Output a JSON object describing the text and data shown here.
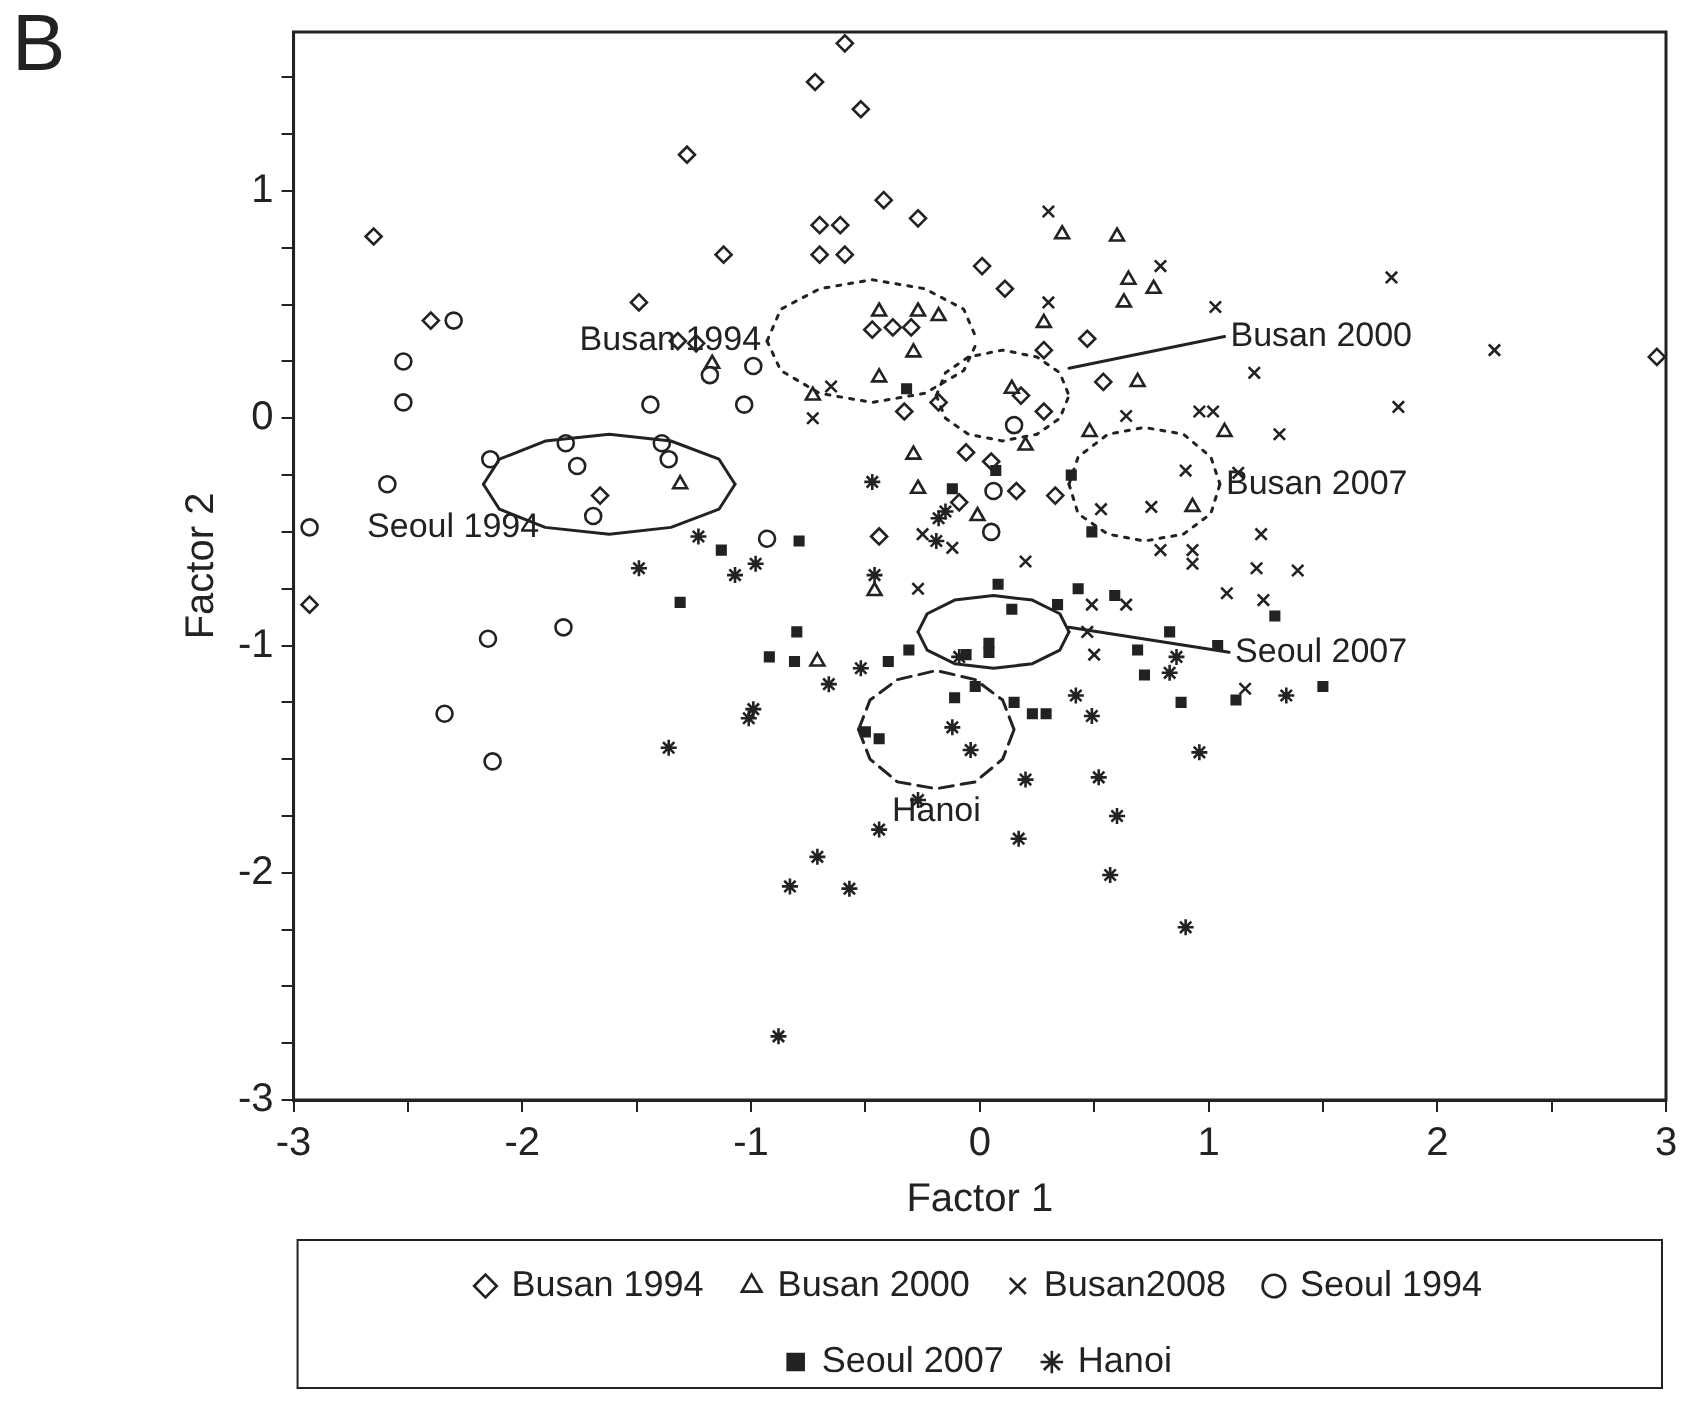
{
  "chart_data": {
    "type": "scatter",
    "xlabel": "Factor 1",
    "ylabel": "Factor 2",
    "legend": "bottom",
    "grid": false,
    "xlim": [
      -3,
      3
    ],
    "xticks": [
      -3,
      {
        "value": -2.5,
        "label": null
      },
      -2,
      {
        "value": -1.5,
        "label": null
      },
      -1,
      {
        "value": -0.5,
        "label": null
      },
      0,
      {
        "value": 0.5,
        "label": null
      },
      1,
      {
        "value": 1.5,
        "label": null
      },
      2,
      {
        "value": 2.5,
        "label": null
      },
      3
    ],
    "ylim": [
      -3,
      1.7
    ],
    "yticks": [
      -3,
      {
        "value": -2.75,
        "label": null
      },
      {
        "value": -2.5,
        "label": null
      },
      {
        "value": -2.25,
        "label": null
      },
      -2,
      {
        "value": -1.75,
        "label": null
      },
      {
        "value": -1.5,
        "label": null
      },
      {
        "value": -1.25,
        "label": null
      },
      -1,
      {
        "value": -0.75,
        "label": null
      },
      {
        "value": -0.5,
        "label": null
      },
      {
        "value": -0.25,
        "label": null
      },
      0,
      {
        "value": 0.25,
        "label": null
      },
      {
        "value": 0.5,
        "label": null
      },
      {
        "value": 0.75,
        "label": null
      },
      1,
      {
        "value": 1.25,
        "label": null
      },
      {
        "value": 1.5,
        "label": null
      }
    ],
    "annotations": [
      "B",
      {
        "text": "Busan 1994",
        "x": -0.93,
        "y": 0.34
      },
      {
        "text": "Busan 2000",
        "x": 1.07,
        "y": 0.36
      },
      {
        "text": "Busan 2007",
        "x": 1.05,
        "y": -0.29
      },
      {
        "text": "Seoul 1994",
        "x": -1.9,
        "y": -0.48
      },
      {
        "text": "Seoul 2007",
        "x": 1.09,
        "y": -1.03
      },
      {
        "text": "Hanoi",
        "x": -0.19,
        "y": -1.63
      }
    ],
    "series": [
      {
        "name": "Busan 1994",
        "color": "#222222",
        "marker": "diamond",
        "x": [
          -1.28,
          -2.65,
          -2.4,
          -1.12,
          -1.49,
          -1.32,
          -1.24,
          -1.66,
          -2.93,
          -0.59,
          -0.72,
          -0.52,
          -0.42,
          -0.27,
          -0.7,
          -0.61,
          -0.7,
          -0.59,
          0.01,
          0.11,
          -0.47,
          -0.38,
          -0.3,
          0.47,
          0.28,
          0.54,
          -0.33,
          -0.18,
          0.18,
          0.28,
          -0.06,
          0.05,
          0.16,
          0.33,
          -0.09,
          -0.44,
          2.96
        ],
        "values": [
          1.16,
          0.8,
          0.43,
          0.72,
          0.51,
          0.34,
          0.33,
          -0.34,
          -0.82,
          1.65,
          1.48,
          1.36,
          0.96,
          0.88,
          0.85,
          0.85,
          0.72,
          0.72,
          0.67,
          0.57,
          0.39,
          0.4,
          0.4,
          0.35,
          0.3,
          0.16,
          0.03,
          0.07,
          0.1,
          0.03,
          -0.15,
          -0.19,
          -0.32,
          -0.34,
          -0.37,
          -0.52,
          0.27
        ]
      },
      {
        "name": "Busan 2000",
        "color": "#222222",
        "marker": "triangle",
        "x": [
          -1.17,
          -1.31,
          0.36,
          0.6,
          0.65,
          0.63,
          0.76,
          0.28,
          -0.44,
          -0.27,
          -0.18,
          -0.29,
          0.69,
          -0.44,
          -0.73,
          0.14,
          0.2,
          0.48,
          -0.29,
          0.93,
          -0.27,
          -0.01,
          1.07,
          -0.46,
          -0.71
        ],
        "values": [
          0.24,
          -0.29,
          0.81,
          0.8,
          0.61,
          0.51,
          0.57,
          0.42,
          0.47,
          0.47,
          0.45,
          0.29,
          0.16,
          0.18,
          0.1,
          0.13,
          -0.12,
          -0.06,
          -0.16,
          -0.39,
          -0.31,
          -0.43,
          -0.06,
          -0.76,
          -1.07
        ]
      },
      {
        "name": "Busan2008",
        "color": "#222222",
        "marker": "cross",
        "x": [
          0.3,
          0.79,
          0.3,
          -0.65,
          -0.73,
          0.64,
          0.96,
          1.02,
          0.9,
          0.53,
          0.75,
          0.79,
          0.93,
          0.93,
          0.2,
          -0.25,
          -0.12,
          1.8,
          1.03,
          2.25,
          1.2,
          1.83,
          1.31,
          1.13,
          1.23,
          1.21,
          1.39,
          1.08,
          1.24,
          1.16,
          -0.27,
          0.49,
          0.64,
          0.47,
          0.5
        ],
        "values": [
          0.91,
          0.67,
          0.51,
          0.14,
          0.0,
          0.01,
          0.03,
          0.03,
          -0.23,
          -0.4,
          -0.39,
          -0.58,
          -0.58,
          -0.64,
          -0.63,
          -0.51,
          -0.57,
          0.62,
          0.49,
          0.3,
          0.2,
          0.05,
          -0.07,
          -0.24,
          -0.51,
          -0.66,
          -0.67,
          -0.77,
          -0.8,
          -1.19,
          -0.75,
          -0.82,
          -0.82,
          -0.94,
          -1.04
        ]
      },
      {
        "name": "Seoul 1994",
        "color": "#222222",
        "marker": "circle",
        "x": [
          -2.3,
          -2.52,
          -2.52,
          -2.14,
          -2.59,
          -2.93,
          -1.18,
          -0.99,
          -1.44,
          -1.03,
          -1.81,
          -1.76,
          -1.39,
          -1.36,
          -1.69,
          -2.15,
          -1.82,
          -2.34,
          -2.13,
          0.15,
          0.06,
          0.05,
          -0.93
        ],
        "values": [
          0.43,
          0.25,
          0.07,
          -0.18,
          -0.29,
          -0.48,
          0.19,
          0.23,
          0.06,
          0.06,
          -0.11,
          -0.21,
          -0.11,
          -0.18,
          -0.43,
          -0.97,
          -0.92,
          -1.3,
          -1.51,
          -0.03,
          -0.32,
          -0.5,
          -0.53
        ]
      },
      {
        "name": "Seoul 2007",
        "color": "#222222",
        "marker": "square",
        "x": [
          -1.13,
          -1.31,
          -0.32,
          0.07,
          0.4,
          0.49,
          -0.12,
          -0.79,
          1.29,
          1.04,
          1.12,
          1.5,
          0.08,
          0.14,
          0.34,
          0.43,
          0.59,
          -0.8,
          -0.92,
          -0.81,
          -0.4,
          -0.31,
          0.04,
          -0.06,
          0.04,
          0.83,
          0.69,
          0.72,
          0.88,
          -0.11,
          -0.02,
          0.15,
          0.23,
          0.29,
          -0.5,
          -0.44
        ],
        "values": [
          -0.58,
          -0.81,
          0.13,
          -0.23,
          -0.25,
          -0.5,
          -0.31,
          -0.54,
          -0.87,
          -1.0,
          -1.24,
          -1.18,
          -0.73,
          -0.84,
          -0.82,
          -0.75,
          -0.78,
          -0.94,
          -1.05,
          -1.07,
          -1.07,
          -1.02,
          -0.99,
          -1.04,
          -1.03,
          -0.94,
          -1.02,
          -1.13,
          -1.25,
          -1.23,
          -1.18,
          -1.25,
          -1.3,
          -1.3,
          -1.38,
          -1.41
        ]
      },
      {
        "name": "Hanoi",
        "color": "#222222",
        "x": [
          -1.23,
          -1.49,
          -1.07,
          -0.98,
          -1.36,
          -1.01,
          -0.99,
          -0.47,
          -0.15,
          -0.18,
          -0.19,
          1.34,
          0.96,
          -0.46,
          -0.52,
          -0.66,
          -0.09,
          0.86,
          0.83,
          0.42,
          0.49,
          -0.12,
          -0.04,
          0.2,
          0.52,
          -0.27,
          0.6,
          0.17,
          -0.44,
          -0.71,
          0.57,
          -0.83,
          -0.57,
          0.9,
          -0.88
        ],
        "values": [
          -0.52,
          -0.66,
          -0.69,
          -0.64,
          -1.45,
          -1.32,
          -1.28,
          -0.28,
          -0.41,
          -0.44,
          -0.54,
          -1.22,
          -1.47,
          -0.69,
          -1.1,
          -1.17,
          -1.05,
          -1.05,
          -1.12,
          -1.22,
          -1.31,
          -1.36,
          -1.46,
          -1.59,
          -1.58,
          -1.68,
          -1.75,
          -1.85,
          -1.81,
          -1.93,
          -2.01,
          -2.06,
          -2.07,
          -2.24,
          -2.72
        ]
      },
      {
        "type": "line",
        "color": "#222222",
        "line_style": "solid",
        "x": [
          -2.17,
          -2.1,
          -1.9,
          -1.62,
          -1.35,
          -1.14,
          -1.07
        ],
        "values": [
          -0.29,
          -0.18,
          -0.1,
          -0.07,
          -0.1,
          -0.18,
          -0.29
        ]
      },
      {
        "type": "line",
        "color": "#222222",
        "line_style": "solid",
        "x": [
          -2.17,
          -2.1,
          -1.9,
          -1.62,
          -1.35,
          -1.14,
          -1.07
        ],
        "values": [
          -0.29,
          -0.4,
          -0.48,
          -0.51,
          -0.48,
          -0.4,
          -0.29
        ]
      },
      {
        "type": "line",
        "color": "#222222",
        "line_style": "dotted",
        "x": [
          -0.93,
          -0.87,
          -0.7,
          -0.47,
          -0.24,
          -0.07,
          -0.01
        ],
        "values": [
          0.34,
          0.48,
          0.57,
          0.61,
          0.57,
          0.48,
          0.34
        ]
      },
      {
        "type": "line",
        "color": "#222222",
        "line_style": "dotted",
        "x": [
          -0.93,
          -0.87,
          -0.7,
          -0.47,
          -0.24,
          -0.07,
          -0.01
        ],
        "values": [
          0.34,
          0.21,
          0.11,
          0.07,
          0.11,
          0.21,
          0.34
        ]
      },
      {
        "type": "line",
        "color": "#222222",
        "line_style": "dotted",
        "x": [
          -0.19,
          -0.15,
          -0.05,
          0.1,
          0.25,
          0.35,
          0.39
        ],
        "values": [
          0.1,
          0.2,
          0.27,
          0.3,
          0.27,
          0.2,
          0.1
        ]
      },
      {
        "type": "line",
        "color": "#222222",
        "line_style": "dotted",
        "x": [
          -0.19,
          -0.15,
          -0.05,
          0.1,
          0.25,
          0.35,
          0.39
        ],
        "values": [
          0.1,
          0.0,
          -0.07,
          -0.1,
          -0.07,
          0.0,
          0.1
        ]
      },
      {
        "type": "line",
        "color": "#222222",
        "line_style": "dotted",
        "x": [
          0.39,
          0.43,
          0.56,
          0.72,
          0.89,
          1.01,
          1.05
        ],
        "values": [
          -0.29,
          -0.17,
          -0.07,
          -0.04,
          -0.07,
          -0.17,
          -0.29
        ]
      },
      {
        "type": "line",
        "color": "#222222",
        "line_style": "dotted",
        "x": [
          0.39,
          0.43,
          0.56,
          0.72,
          0.89,
          1.01,
          1.05
        ],
        "values": [
          -0.29,
          -0.42,
          -0.51,
          -0.54,
          -0.51,
          -0.42,
          -0.29
        ]
      },
      {
        "type": "line",
        "color": "#222222",
        "line_style": "solid",
        "x": [
          -0.27,
          -0.23,
          -0.11,
          0.06,
          0.23,
          0.35,
          0.39
        ],
        "values": [
          -0.94,
          -0.86,
          -0.8,
          -0.78,
          -0.8,
          -0.86,
          -0.94
        ]
      },
      {
        "type": "line",
        "color": "#222222",
        "line_style": "solid",
        "x": [
          -0.27,
          -0.23,
          -0.11,
          0.06,
          0.23,
          0.35,
          0.39
        ],
        "values": [
          -0.94,
          -1.02,
          -1.08,
          -1.1,
          -1.08,
          -1.02,
          -0.94
        ]
      },
      {
        "type": "line",
        "color": "#222222",
        "line_style": "dashed",
        "x": [
          -0.53,
          -0.48,
          -0.36,
          -0.19,
          -0.02,
          0.1,
          0.15
        ],
        "values": [
          -1.37,
          -1.24,
          -1.15,
          -1.11,
          -1.15,
          -1.24,
          -1.37
        ]
      },
      {
        "type": "line",
        "color": "#222222",
        "line_style": "dashed",
        "x": [
          -0.53,
          -0.48,
          -0.36,
          -0.19,
          -0.02,
          0.1,
          0.15
        ],
        "values": [
          -1.37,
          -1.5,
          -1.6,
          -1.63,
          -1.6,
          -1.5,
          -1.37
        ]
      },
      {
        "type": "line",
        "color": "#222222",
        "line_style": "solid",
        "x": [
          0.39,
          1.07
        ],
        "values": [
          0.22,
          0.36
        ]
      },
      {
        "type": "line",
        "color": "#222222",
        "line_style": "solid",
        "x": [
          0.39,
          1.09
        ],
        "values": [
          -0.92,
          -1.03
        ]
      }
    ]
  }
}
